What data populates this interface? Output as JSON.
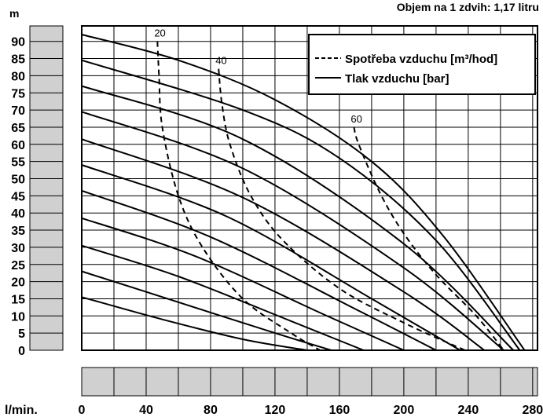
{
  "chart_data": {
    "type": "line",
    "title": "Objem na 1 zdvih: 1,17 litru",
    "ylabel": "m",
    "xlabel": "l/min.",
    "x_ticks": [
      0,
      40,
      80,
      120,
      160,
      200,
      240,
      280
    ],
    "y_ticks": [
      0,
      5,
      10,
      15,
      20,
      25,
      30,
      35,
      40,
      45,
      50,
      55,
      60,
      65,
      70,
      75,
      80,
      85,
      90
    ],
    "xlim": [
      0,
      283
    ],
    "ylim": [
      0,
      93
    ],
    "grid": true,
    "legend_position": "top-right",
    "legend": [
      {
        "style": "dashed",
        "label": "Spotřeba vzduchu [m³/hod]"
      },
      {
        "style": "solid",
        "label": "Tlak vzduchu [bar]"
      }
    ],
    "series": [
      {
        "style": "solid",
        "points": [
          [
            0,
            15.5
          ],
          [
            50,
            9
          ],
          [
            100,
            3.2
          ],
          [
            140,
            0
          ]
        ]
      },
      {
        "style": "solid",
        "points": [
          [
            0,
            23
          ],
          [
            60,
            14
          ],
          [
            120,
            5
          ],
          [
            155,
            0
          ]
        ]
      },
      {
        "style": "solid",
        "points": [
          [
            0,
            30.5
          ],
          [
            60,
            21.5
          ],
          [
            130,
            8.5
          ],
          [
            175,
            0
          ]
        ]
      },
      {
        "style": "solid",
        "points": [
          [
            0,
            38.5
          ],
          [
            70,
            27.5
          ],
          [
            150,
            10.5
          ],
          [
            200,
            0
          ]
        ]
      },
      {
        "style": "solid",
        "points": [
          [
            0,
            46.5
          ],
          [
            80,
            33
          ],
          [
            170,
            12
          ],
          [
            220,
            0
          ]
        ]
      },
      {
        "style": "solid",
        "points": [
          [
            0,
            54
          ],
          [
            90,
            39
          ],
          [
            180,
            15
          ],
          [
            235,
            0
          ]
        ]
      },
      {
        "style": "solid",
        "points": [
          [
            0,
            61.5
          ],
          [
            100,
            44.5
          ],
          [
            200,
            17
          ],
          [
            250,
            0
          ]
        ]
      },
      {
        "style": "solid",
        "points": [
          [
            0,
            69.5
          ],
          [
            100,
            53
          ],
          [
            200,
            24
          ],
          [
            262,
            0
          ]
        ]
      },
      {
        "style": "solid",
        "points": [
          [
            0,
            77
          ],
          [
            100,
            61.5
          ],
          [
            200,
            31
          ],
          [
            268,
            0
          ]
        ]
      },
      {
        "style": "solid",
        "points": [
          [
            0,
            84.5
          ],
          [
            100,
            70
          ],
          [
            160,
            56
          ],
          [
            220,
            32
          ],
          [
            272,
            0
          ]
        ]
      },
      {
        "style": "solid",
        "points": [
          [
            0,
            92
          ],
          [
            60,
            84.5
          ],
          [
            120,
            73
          ],
          [
            180,
            55
          ],
          [
            225,
            33
          ],
          [
            275,
            0
          ]
        ]
      },
      {
        "label": "20",
        "style": "dashed",
        "points": [
          [
            47,
            90
          ],
          [
            48,
            80
          ],
          [
            50,
            65
          ],
          [
            60,
            45
          ],
          [
            75,
            30
          ],
          [
            100,
            15
          ],
          [
            130,
            5
          ],
          [
            148,
            0
          ]
        ]
      },
      {
        "label": "40",
        "style": "dashed",
        "points": [
          [
            85,
            82
          ],
          [
            87,
            72
          ],
          [
            92,
            60
          ],
          [
            105,
            45
          ],
          [
            125,
            32
          ],
          [
            160,
            18
          ],
          [
            200,
            8
          ],
          [
            238,
            0
          ]
        ]
      },
      {
        "label": "60",
        "style": "dashed",
        "points": [
          [
            169,
            65
          ],
          [
            172,
            60
          ],
          [
            185,
            46
          ],
          [
            200,
            34
          ],
          [
            220,
            22
          ],
          [
            245,
            10
          ],
          [
            262,
            0
          ]
        ]
      }
    ]
  }
}
